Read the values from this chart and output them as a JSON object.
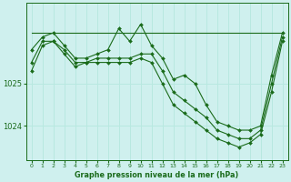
{
  "bg_color": "#cff0ee",
  "grid_color": "#b8e8e0",
  "line_color": "#1a6b1a",
  "title": "Graphe pression niveau de la mer (hPa)",
  "xlim": [
    -0.5,
    23.5
  ],
  "ylim": [
    1023.2,
    1026.9
  ],
  "yticks": [
    1024,
    1025
  ],
  "xticks": [
    0,
    1,
    2,
    3,
    4,
    5,
    6,
    7,
    8,
    9,
    10,
    11,
    12,
    13,
    14,
    15,
    16,
    17,
    18,
    19,
    20,
    21,
    22,
    23
  ],
  "line1_x": [
    0,
    1,
    2,
    3,
    4,
    5,
    6,
    7,
    8,
    9,
    10,
    11,
    12,
    13,
    14,
    15,
    16,
    17,
    18,
    19,
    20,
    21,
    22,
    23
  ],
  "line1_y": [
    1026.2,
    1026.2,
    1026.2,
    1026.2,
    1026.2,
    1026.2,
    1026.2,
    1026.2,
    1026.2,
    1026.2,
    1026.2,
    1026.2,
    1026.2,
    1026.2,
    1026.2,
    1026.2,
    1026.2,
    1026.2,
    1026.2,
    1026.2,
    1026.2,
    1026.2,
    1026.2,
    1026.2
  ],
  "line2_x": [
    0,
    1,
    2,
    3,
    4,
    5,
    6,
    7,
    8,
    9,
    10,
    11,
    12,
    13,
    14,
    15,
    16,
    17,
    18,
    19,
    20,
    21,
    22,
    23
  ],
  "line2_y": [
    1025.8,
    1026.1,
    1026.2,
    1025.9,
    1025.6,
    1025.6,
    1025.7,
    1025.8,
    1026.3,
    1026.0,
    1026.4,
    1025.9,
    1025.6,
    1025.1,
    1025.2,
    1025.0,
    1024.5,
    1024.1,
    1024.0,
    1023.9,
    1023.9,
    1024.0,
    1025.2,
    1026.2
  ],
  "line3_x": [
    0,
    1,
    2,
    3,
    4,
    5,
    6,
    7,
    8,
    9,
    10,
    11,
    12,
    13,
    14,
    15,
    16,
    17,
    18,
    19,
    20,
    21,
    22,
    23
  ],
  "line3_y": [
    1025.5,
    1026.0,
    1026.0,
    1025.8,
    1025.5,
    1025.5,
    1025.6,
    1025.6,
    1025.6,
    1025.6,
    1025.7,
    1025.7,
    1025.3,
    1024.8,
    1024.6,
    1024.4,
    1024.2,
    1023.9,
    1023.8,
    1023.7,
    1023.7,
    1023.9,
    1025.0,
    1026.1
  ],
  "line4_x": [
    0,
    1,
    2,
    3,
    4,
    5,
    6,
    7,
    8,
    9,
    10,
    11,
    12,
    13,
    14,
    15,
    16,
    17,
    18,
    19,
    20,
    21,
    22,
    23
  ],
  "line4_y": [
    1025.3,
    1025.9,
    1026.0,
    1025.7,
    1025.4,
    1025.5,
    1025.5,
    1025.5,
    1025.5,
    1025.5,
    1025.6,
    1025.5,
    1025.0,
    1024.5,
    1024.3,
    1024.1,
    1023.9,
    1023.7,
    1023.6,
    1023.5,
    1023.6,
    1023.8,
    1024.8,
    1026.0
  ]
}
